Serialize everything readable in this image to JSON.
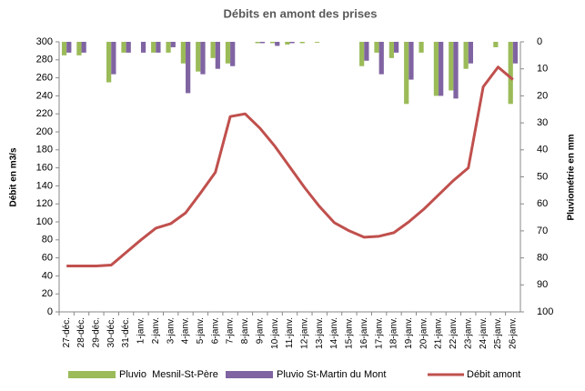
{
  "chart_data": {
    "type": "bar-line",
    "title": "Débits en amont des prises",
    "ylabel": "Débit en m3/s",
    "y2label": "Pluviométrie en mm",
    "categories": [
      "27-déc.",
      "28-déc.",
      "29-déc.",
      "30-déc.",
      "31-déc.",
      "1-janv.",
      "2-janv.",
      "3-janv.",
      "4-janv.",
      "5-janv.",
      "6-janv.",
      "7-janv.",
      "8-janv.",
      "9-janv.",
      "10-janv.",
      "11-janv.",
      "12-janv.",
      "13-janv.",
      "14-janv.",
      "15-janv.",
      "16-janv.",
      "17-janv.",
      "18-janv.",
      "19-janv.",
      "20-janv.",
      "21-janv.",
      "22-janv.",
      "23-janv.",
      "24-janv.",
      "25-janv.",
      "26-janv."
    ],
    "series": [
      {
        "name": "Pluvio  Mesnil-St-Père",
        "type": "bar",
        "axis": "y2",
        "color": "#9bbb59",
        "values": [
          5,
          5,
          0,
          15,
          4,
          0,
          4,
          4,
          8,
          11,
          6,
          8,
          0,
          0.5,
          0.5,
          1,
          0.5,
          0.3,
          0,
          0,
          9,
          4,
          6,
          23,
          4,
          20,
          18,
          10,
          0,
          2,
          23
        ]
      },
      {
        "name": "Pluvio St-Martin du Mont",
        "type": "bar",
        "axis": "y2",
        "color": "#8064a2",
        "values": [
          4,
          4,
          0,
          12,
          4,
          4,
          4,
          2,
          19,
          12,
          10,
          9,
          0,
          0.5,
          1.5,
          0.5,
          0,
          0,
          0,
          0,
          7,
          12,
          4,
          14,
          0,
          20,
          21,
          8,
          0,
          0,
          8
        ]
      },
      {
        "name": "Débit amont",
        "type": "line",
        "axis": "y",
        "color": "#c0504d",
        "values": [
          51,
          51,
          51,
          52,
          66,
          80,
          93,
          98,
          110,
          132,
          155,
          217,
          220,
          204,
          184,
          161,
          138,
          117,
          99,
          90,
          83,
          84,
          88,
          100,
          114,
          130,
          146,
          160,
          250,
          272,
          258
        ]
      }
    ],
    "ylim": [
      0,
      300
    ],
    "yticks": [
      0,
      20,
      40,
      60,
      80,
      100,
      120,
      140,
      160,
      180,
      200,
      220,
      240,
      260,
      280,
      300
    ],
    "y2lim": [
      0,
      100
    ],
    "y2inverted": true,
    "y2ticks": [
      0,
      10,
      20,
      30,
      40,
      50,
      60,
      70,
      80,
      90,
      100
    ],
    "legend": "bottom"
  }
}
